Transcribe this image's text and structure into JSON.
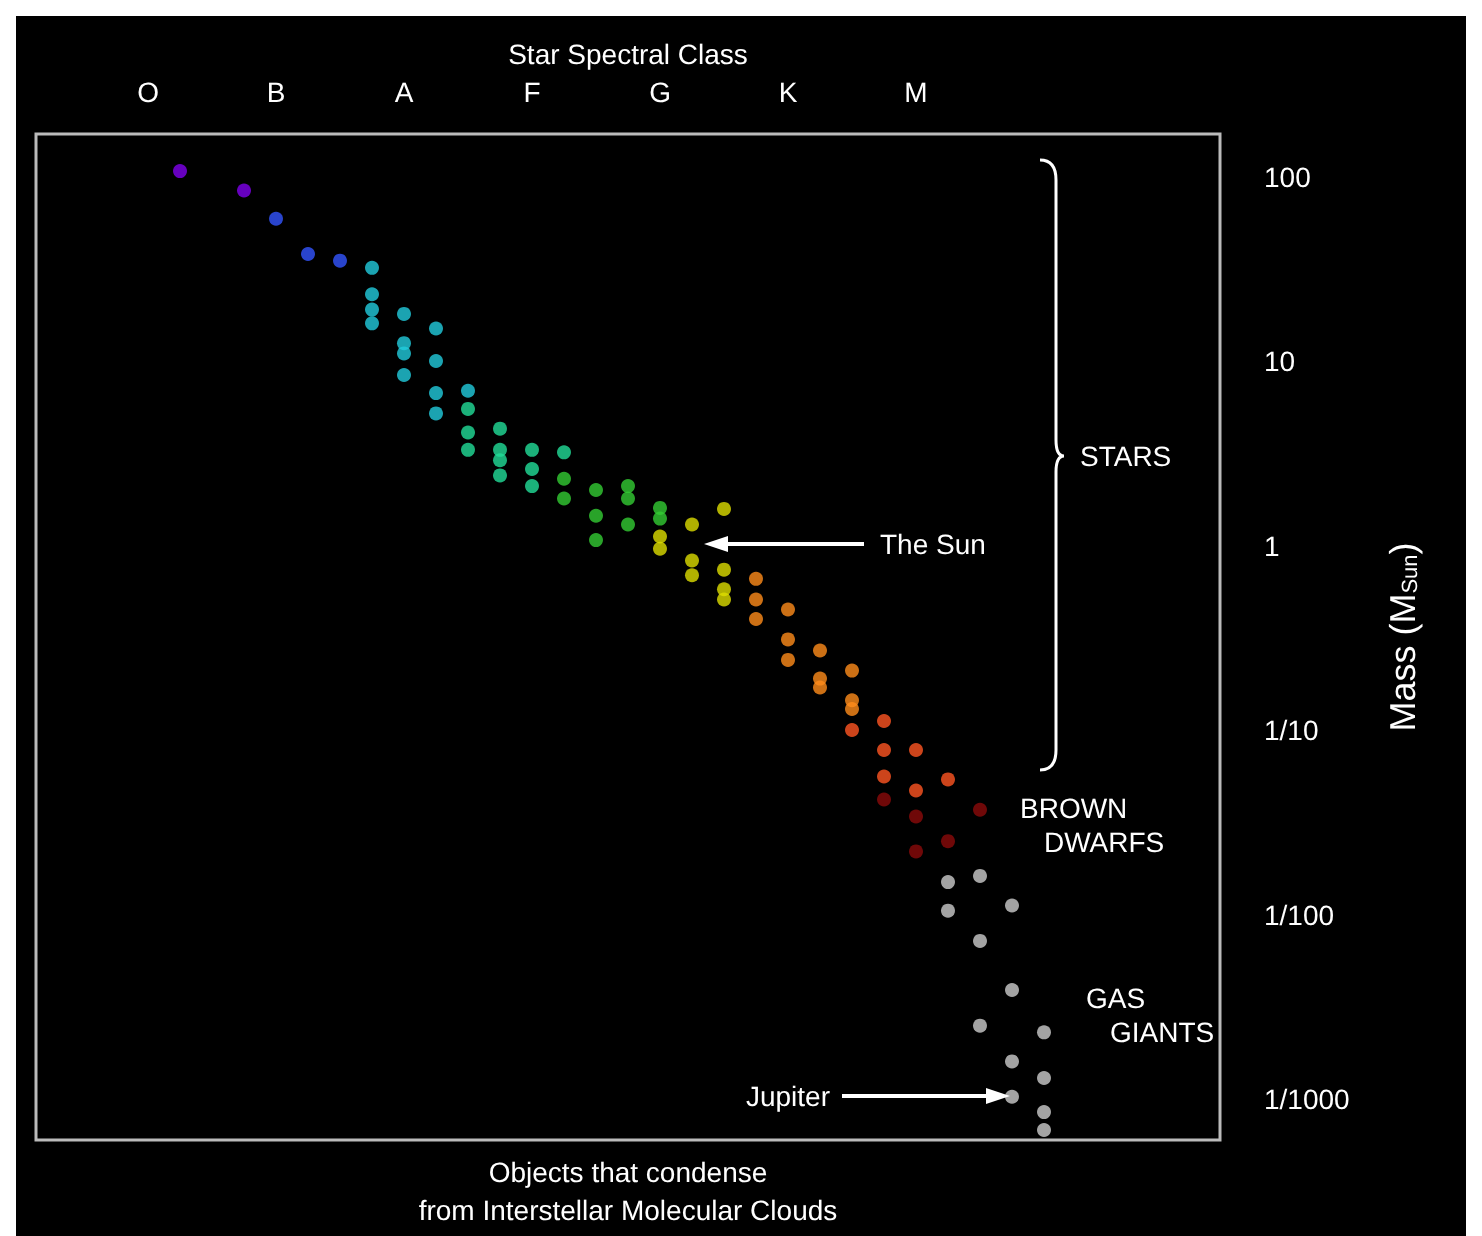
{
  "chart_data": {
    "type": "scatter",
    "xlabel": "Star Spectral Class",
    "ylabel": "Mass (M$_{Sun}$)",
    "categories": [
      null,
      null,
      null,
      "O",
      null,
      null,
      null,
      "B",
      null,
      null,
      null,
      "A",
      null,
      null,
      null,
      "F",
      null,
      null,
      null,
      "G",
      null,
      null,
      null,
      "K",
      null,
      null,
      null,
      "M",
      null,
      null,
      null,
      null,
      null,
      null,
      null,
      null,
      null
    ],
    "ylim": [
      0.0006,
      170
    ],
    "log": true,
    "yticks": [
      {
        "value": 100,
        "label": "100"
      },
      {
        "value": 10,
        "label": "10"
      },
      {
        "value": 1,
        "label": "1"
      },
      {
        "value": 0.1,
        "label": "1/10"
      },
      {
        "value": 0.01,
        "label": "1/100"
      },
      {
        "value": 0.001,
        "label": "1/1000"
      }
    ],
    "marker": "circle",
    "grid": false,
    "series": [
      {
        "values": [
          null,
          null,
          null,
          null,
          107,
          null,
          84,
          59,
          38,
          35,
          32,
          18,
          15,
          6.9,
          4.3,
          3.3,
          3.2,
          2.0,
          2.1,
          1.6,
          1.3,
          1.58,
          0.66,
          0.45,
          0.27,
          0.21,
          0.112,
          0.078,
          0.054,
          0.037,
          0.0112,
          0.0023,
          null,
          null,
          null,
          null,
          null
        ],
        "colors": [
          null,
          null,
          null,
          null,
          "#8000ee",
          null,
          "#8000ee",
          "#3355ff",
          "#3355ff",
          "#3355ff",
          "#22ccdd",
          "#22ccdd",
          "#22ccdd",
          "#22ccdd",
          "#22dd99",
          "#22dd99",
          "#22dd99",
          "#33cc33",
          "#33cc33",
          "#33cc33",
          "#dddd00",
          "#dddd00",
          "#ff8c1a",
          "#ff8c1a",
          "#ff8c1a",
          "#ff8c1a",
          "#ff5522",
          "#ff5522",
          "#ff5522",
          "#8b0a0a",
          "#cccccc",
          "#cccccc",
          null,
          null,
          null,
          null,
          null
        ]
      },
      {
        "values": [
          null,
          null,
          null,
          null,
          null,
          null,
          null,
          null,
          null,
          null,
          23,
          12.5,
          10,
          5.5,
          3.3,
          2.6,
          2.3,
          1.45,
          1.8,
          1.4,
          0.83,
          0.74,
          0.51,
          0.31,
          0.19,
          0.145,
          0.078,
          0.047,
          0.025,
          0.0162,
          0.0039,
          0.0013,
          null,
          null,
          null,
          null,
          null
        ],
        "colors": [
          null,
          null,
          null,
          null,
          null,
          null,
          null,
          null,
          null,
          null,
          "#22ccdd",
          "#22ccdd",
          "#22ccdd",
          "#22dd99",
          "#22dd99",
          "#22dd99",
          "#33cc33",
          "#33cc33",
          "#33cc33",
          "#33cc33",
          "#dddd00",
          "#dddd00",
          "#ff8c1a",
          "#ff8c1a",
          "#ff8c1a",
          "#ff8c1a",
          "#ff5522",
          "#ff5522",
          "#8b0a0a",
          "#cccccc",
          "#cccccc",
          "#cccccc",
          null,
          null,
          null,
          null,
          null
        ]
      },
      {
        "values": [
          null,
          null,
          null,
          null,
          null,
          null,
          null,
          null,
          null,
          null,
          19,
          11,
          6.7,
          4.1,
          2.9,
          2.1,
          null,
          1.07,
          1.3,
          1.12,
          0.69,
          0.58,
          0.4,
          0.24,
          0.17,
          0.13,
          0.056,
          0.034,
          0.015,
          0.0072,
          0.0016,
          0.00085,
          null,
          null,
          null,
          null,
          null
        ],
        "colors": [
          null,
          null,
          null,
          null,
          null,
          null,
          null,
          null,
          null,
          null,
          "#22ccdd",
          "#22ccdd",
          "#22ccdd",
          "#22dd99",
          "#22dd99",
          "#22dd99",
          null,
          "#33cc33",
          "#33cc33",
          "#dddd00",
          "#dddd00",
          "#dddd00",
          "#ff8c1a",
          "#ff8c1a",
          "#ff8c1a",
          "#ff8c1a",
          "#ff5522",
          "#8b0a0a",
          "#cccccc",
          "#cccccc",
          "#cccccc",
          "#cccccc",
          null,
          null,
          null,
          null,
          null
        ]
      },
      {
        "values": [
          null,
          null,
          null,
          null,
          null,
          null,
          null,
          null,
          null,
          null,
          16,
          8.4,
          5.2,
          3.3,
          2.4,
          null,
          1.8,
          null,
          null,
          0.96,
          null,
          0.51,
          null,
          null,
          null,
          0.1,
          0.042,
          0.022,
          0.0105,
          0.0025,
          0.00103,
          0.00068,
          null,
          null,
          null,
          null,
          null
        ],
        "colors": [
          null,
          null,
          null,
          null,
          null,
          null,
          null,
          null,
          null,
          null,
          "#22ccdd",
          "#22ccdd",
          "#22ccdd",
          "#22dd99",
          "#22dd99",
          null,
          "#33cc33",
          null,
          null,
          "#dddd00",
          null,
          "#dddd00",
          null,
          null,
          null,
          "#ff5522",
          "#8b0a0a",
          "#8b0a0a",
          "#cccccc",
          "#cccccc",
          "#cccccc",
          "#cccccc",
          null,
          null,
          null,
          null,
          null
        ]
      }
    ],
    "annotations": [
      "The Sun",
      "Jupiter",
      "STARS",
      "BROWN DWARFS",
      "GAS GIANTS",
      "Objects that condense from Interstellar Molecular Clouds"
    ]
  }
}
